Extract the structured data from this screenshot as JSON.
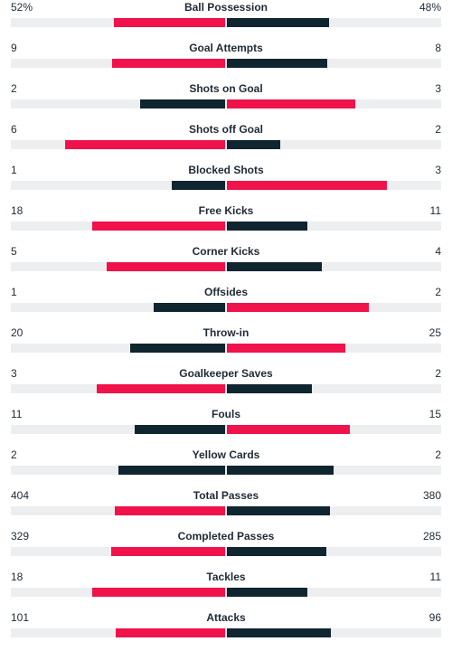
{
  "colors": {
    "red": "#f0124a",
    "dark": "#0f2530",
    "track": "#eceef0"
  },
  "stats": [
    {
      "label": "Ball Possession",
      "home": "52%",
      "away": "48%",
      "home_frac": 0.52,
      "away_frac": 0.48,
      "home_color": "#f0124a",
      "away_color": "#0f2530"
    },
    {
      "label": "Goal Attempts",
      "home": "9",
      "away": "8",
      "home_frac": 0.529,
      "away_frac": 0.471,
      "home_color": "#f0124a",
      "away_color": "#0f2530"
    },
    {
      "label": "Shots on Goal",
      "home": "2",
      "away": "3",
      "home_frac": 0.4,
      "away_frac": 0.6,
      "home_color": "#0f2530",
      "away_color": "#f0124a"
    },
    {
      "label": "Shots off Goal",
      "home": "6",
      "away": "2",
      "home_frac": 0.75,
      "away_frac": 0.25,
      "home_color": "#f0124a",
      "away_color": "#0f2530"
    },
    {
      "label": "Blocked Shots",
      "home": "1",
      "away": "3",
      "home_frac": 0.25,
      "away_frac": 0.75,
      "home_color": "#0f2530",
      "away_color": "#f0124a"
    },
    {
      "label": "Free Kicks",
      "home": "18",
      "away": "11",
      "home_frac": 0.621,
      "away_frac": 0.379,
      "home_color": "#f0124a",
      "away_color": "#0f2530"
    },
    {
      "label": "Corner Kicks",
      "home": "5",
      "away": "4",
      "home_frac": 0.556,
      "away_frac": 0.444,
      "home_color": "#f0124a",
      "away_color": "#0f2530"
    },
    {
      "label": "Offsides",
      "home": "1",
      "away": "2",
      "home_frac": 0.333,
      "away_frac": 0.667,
      "home_color": "#0f2530",
      "away_color": "#f0124a"
    },
    {
      "label": "Throw-in",
      "home": "20",
      "away": "25",
      "home_frac": 0.444,
      "away_frac": 0.556,
      "home_color": "#0f2530",
      "away_color": "#f0124a"
    },
    {
      "label": "Goalkeeper Saves",
      "home": "3",
      "away": "2",
      "home_frac": 0.6,
      "away_frac": 0.4,
      "home_color": "#f0124a",
      "away_color": "#0f2530"
    },
    {
      "label": "Fouls",
      "home": "11",
      "away": "15",
      "home_frac": 0.423,
      "away_frac": 0.577,
      "home_color": "#0f2530",
      "away_color": "#f0124a"
    },
    {
      "label": "Yellow Cards",
      "home": "2",
      "away": "2",
      "home_frac": 0.5,
      "away_frac": 0.5,
      "home_color": "#0f2530",
      "away_color": "#0f2530"
    },
    {
      "label": "Total Passes",
      "home": "404",
      "away": "380",
      "home_frac": 0.515,
      "away_frac": 0.485,
      "home_color": "#f0124a",
      "away_color": "#0f2530"
    },
    {
      "label": "Completed Passes",
      "home": "329",
      "away": "285",
      "home_frac": 0.536,
      "away_frac": 0.464,
      "home_color": "#f0124a",
      "away_color": "#0f2530"
    },
    {
      "label": "Tackles",
      "home": "18",
      "away": "11",
      "home_frac": 0.621,
      "away_frac": 0.379,
      "home_color": "#f0124a",
      "away_color": "#0f2530"
    },
    {
      "label": "Attacks",
      "home": "101",
      "away": "96",
      "home_frac": 0.513,
      "away_frac": 0.487,
      "home_color": "#f0124a",
      "away_color": "#0f2530"
    }
  ]
}
